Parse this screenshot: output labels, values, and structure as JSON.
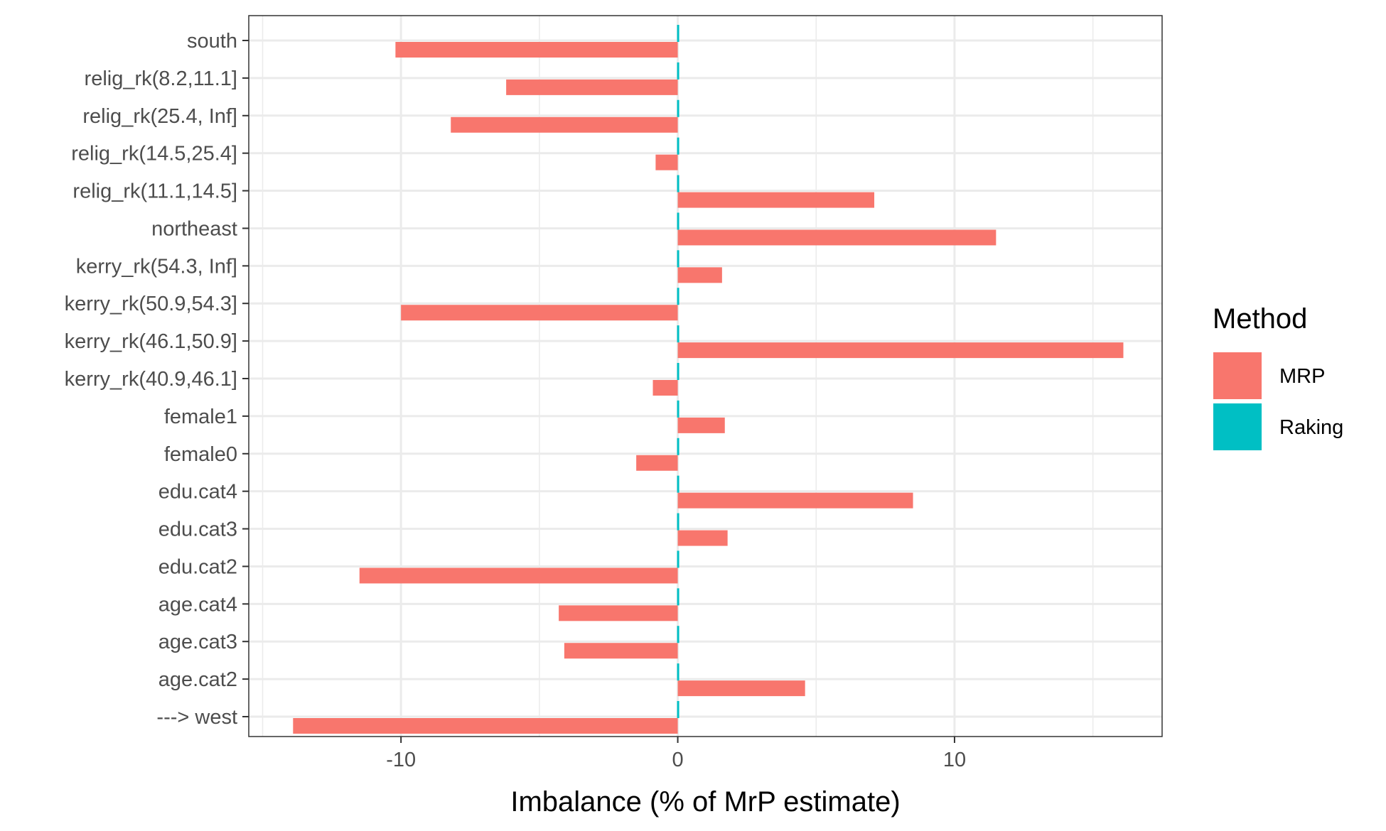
{
  "chart_data": {
    "type": "bar",
    "orientation": "horizontal",
    "xlabel": "Imbalance (% of MrP estimate)",
    "ylabel": "",
    "xlim": [
      -15.5,
      17.5
    ],
    "x_ticks": [
      -10,
      0,
      10
    ],
    "x_tick_labels": [
      "-10",
      "0",
      "10"
    ],
    "grid": true,
    "legend": {
      "title": "Method",
      "position": "right",
      "entries": [
        {
          "label": "MRP",
          "color": "#F8766D"
        },
        {
          "label": "Raking",
          "color": "#00BFC4"
        }
      ]
    },
    "categories": [
      "south",
      "relig_rk(8.2,11.1]",
      "relig_rk(25.4, Inf]",
      "relig_rk(14.5,25.4]",
      "relig_rk(11.1,14.5]",
      "northeast",
      "kerry_rk(54.3, Inf]",
      "kerry_rk(50.9,54.3]",
      "kerry_rk(46.1,50.9]",
      "kerry_rk(40.9,46.1]",
      "female1",
      "female0",
      "edu.cat4",
      "edu.cat3",
      "edu.cat2",
      "age.cat4",
      "age.cat3",
      "age.cat2",
      "---> west"
    ],
    "series": [
      {
        "name": "MRP",
        "color": "#F8766D",
        "values": [
          -10.2,
          -6.2,
          -8.2,
          -0.8,
          7.1,
          11.5,
          1.6,
          -10.0,
          16.1,
          -0.9,
          1.7,
          -1.5,
          8.5,
          1.8,
          -11.5,
          -4.3,
          -4.1,
          4.6,
          -13.9
        ]
      },
      {
        "name": "Raking",
        "color": "#00BFC4",
        "values": [
          0.02,
          0.02,
          0.02,
          0.02,
          0.02,
          0.02,
          0.02,
          0.02,
          0.02,
          0.02,
          0.02,
          0.02,
          0.02,
          0.02,
          0.02,
          0.02,
          0.02,
          0.02,
          0.02
        ]
      }
    ]
  }
}
